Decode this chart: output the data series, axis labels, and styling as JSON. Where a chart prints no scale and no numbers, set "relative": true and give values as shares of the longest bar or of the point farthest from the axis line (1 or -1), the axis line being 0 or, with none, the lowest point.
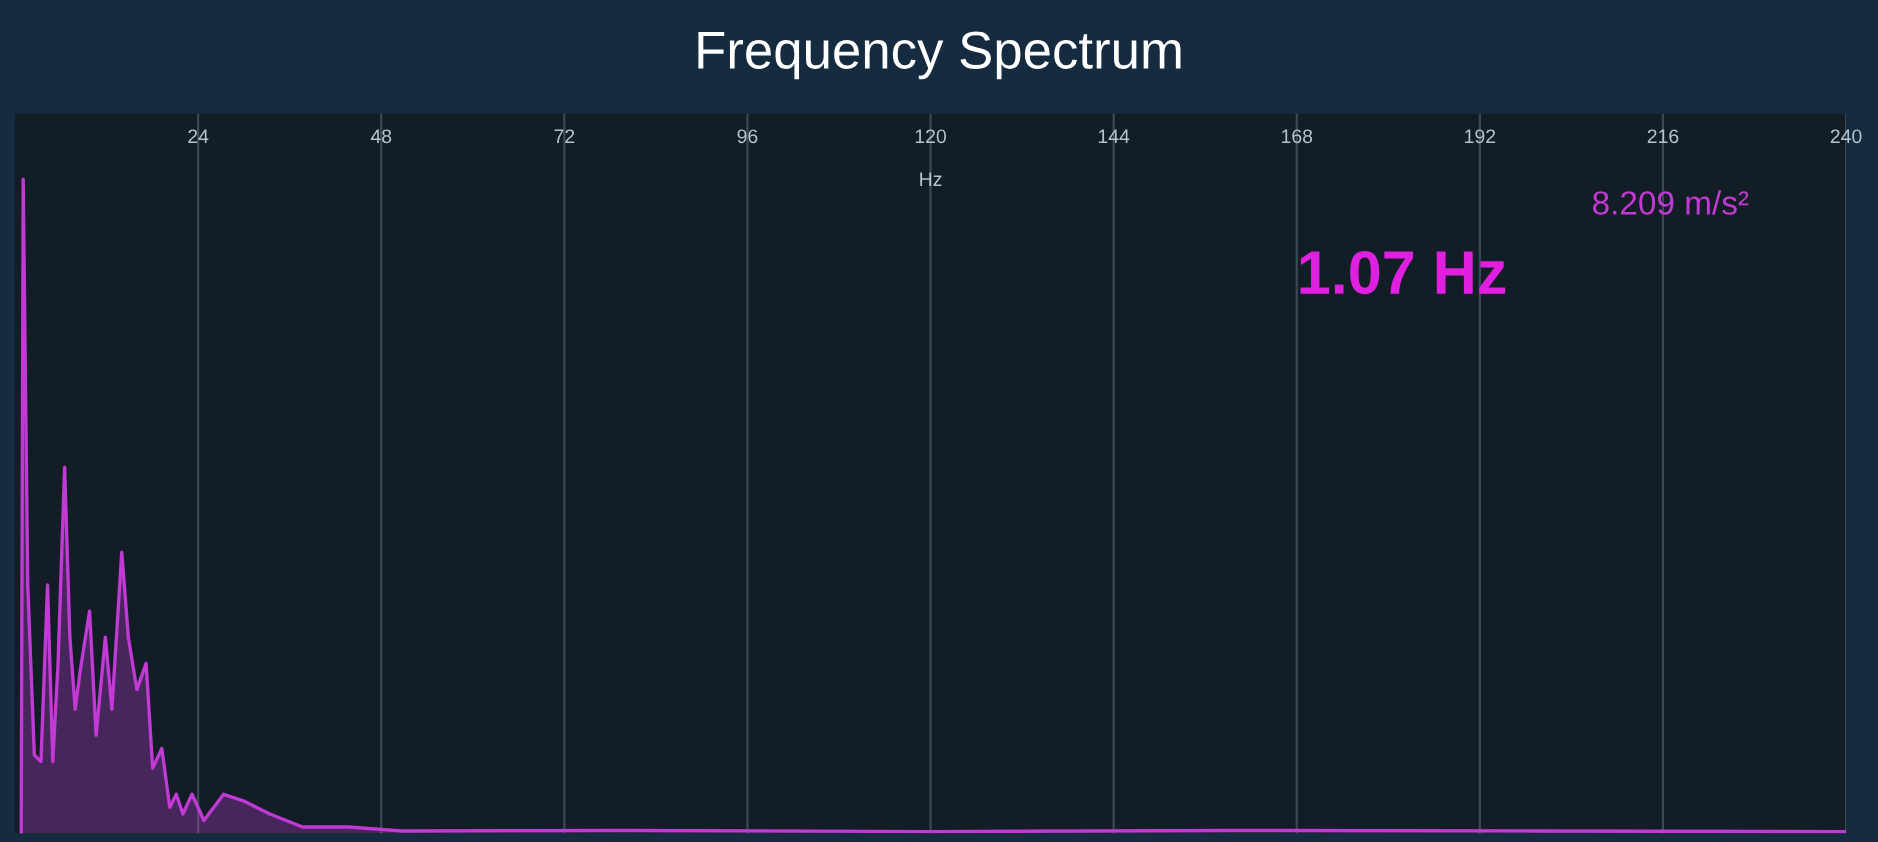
{
  "chart_data": {
    "type": "area",
    "title": "Frequency Spectrum",
    "xlabel": "Hz",
    "relative": true,
    "xlim": [
      0,
      240
    ],
    "xticks": [
      24,
      48,
      72,
      96,
      120,
      144,
      168,
      192,
      216,
      240
    ],
    "grid": "x",
    "legend": false,
    "annotations": [
      "8.209 m/s²",
      "1.07 Hz"
    ],
    "series": [
      {
        "color": "#c23ad6",
        "x": [
          0.81,
          1.07,
          1.67,
          2.53,
          3.4,
          4.26,
          4.95,
          5.64,
          6.5,
          7.19,
          7.88,
          8.56,
          9.77,
          10.63,
          11.84,
          12.7,
          13.99,
          14.85,
          15.97,
          17.18,
          18.04,
          19.24,
          20.28,
          21.14,
          22.0,
          23.2,
          24.76,
          27.34,
          29.93,
          33.4,
          37.7,
          43.7,
          50.6,
          80,
          120,
          160,
          200,
          240
        ],
        "values": [
          0,
          1,
          0.38,
          0.12,
          0.11,
          0.38,
          0.11,
          0.26,
          0.56,
          0.3,
          0.19,
          0.25,
          0.34,
          0.15,
          0.3,
          0.19,
          0.43,
          0.3,
          0.22,
          0.26,
          0.1,
          0.13,
          0.04,
          0.06,
          0.03,
          0.06,
          0.02,
          0.06,
          0.05,
          0.03,
          0.01,
          0.01,
          0.004,
          0.005,
          0.003,
          0.005,
          0.004,
          0.003
        ]
      }
    ]
  }
}
